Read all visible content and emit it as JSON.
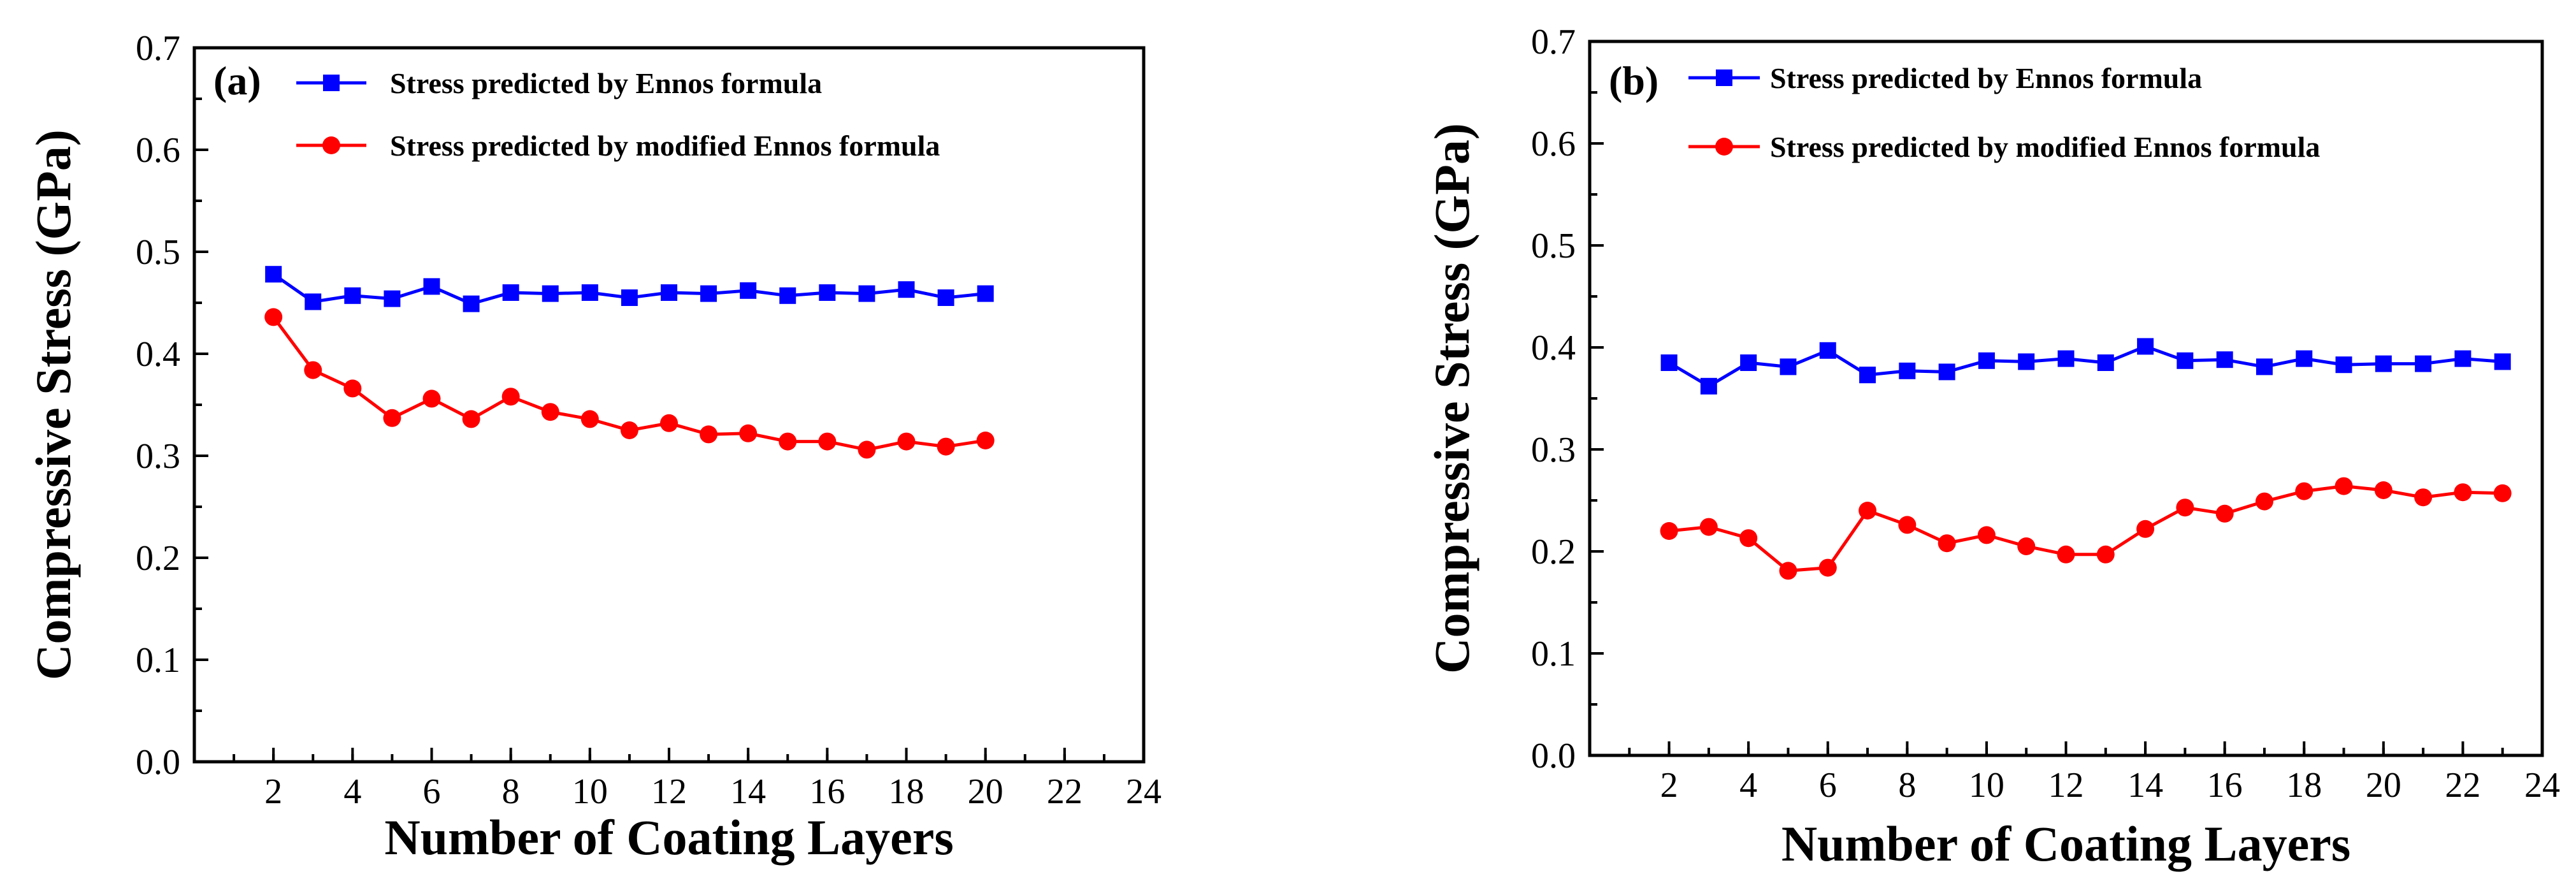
{
  "chart_data": [
    {
      "type": "line",
      "panel_label": "(a)",
      "xlabel": "Number of Coating Layers",
      "ylabel": "Compressive Stress (GPa)",
      "xlim": [
        0,
        24
      ],
      "ylim": [
        0.0,
        0.7
      ],
      "xticks": [
        2,
        4,
        6,
        8,
        10,
        12,
        14,
        16,
        18,
        20,
        22,
        24
      ],
      "yticks": [
        "0.0",
        "0.1",
        "0.2",
        "0.3",
        "0.4",
        "0.5",
        "0.6",
        "0.7"
      ],
      "legend_position": "top-left",
      "grid": false,
      "series": [
        {
          "name": "Stress predicted by Ennos formula",
          "color": "#0000ff",
          "marker": "square",
          "x": [
            2,
            3,
            4,
            5,
            6,
            7,
            8,
            9,
            10,
            11,
            12,
            13,
            14,
            15,
            16,
            17,
            18,
            19,
            20
          ],
          "values": [
            0.478,
            0.451,
            0.457,
            0.454,
            0.466,
            0.449,
            0.46,
            0.459,
            0.46,
            0.455,
            0.46,
            0.459,
            0.462,
            0.457,
            0.46,
            0.459,
            0.463,
            0.455,
            0.459
          ]
        },
        {
          "name": "Stress predicted by modified Ennos formula",
          "color": "#ff0000",
          "marker": "circle",
          "x": [
            2,
            3,
            4,
            5,
            6,
            7,
            8,
            9,
            10,
            11,
            12,
            13,
            14,
            15,
            16,
            17,
            18,
            19,
            20
          ],
          "values": [
            0.436,
            0.384,
            0.366,
            0.337,
            0.356,
            0.336,
            0.358,
            0.343,
            0.336,
            0.325,
            0.332,
            0.321,
            0.322,
            0.314,
            0.314,
            0.306,
            0.314,
            0.309,
            0.315
          ]
        }
      ]
    },
    {
      "type": "line",
      "panel_label": "(b)",
      "xlabel": "Number of Coating Layers",
      "ylabel": "Compressive Stress (GPa)",
      "xlim": [
        0,
        24
      ],
      "ylim": [
        0.0,
        0.7
      ],
      "xticks": [
        2,
        4,
        6,
        8,
        10,
        12,
        14,
        16,
        18,
        20,
        22,
        24
      ],
      "yticks": [
        "0.0",
        "0.1",
        "0.2",
        "0.3",
        "0.4",
        "0.5",
        "0.6",
        "0.7"
      ],
      "legend_position": "top-left",
      "grid": false,
      "series": [
        {
          "name": "Stress predicted by Ennos formula",
          "color": "#0000ff",
          "marker": "square",
          "x": [
            2,
            3,
            4,
            5,
            6,
            7,
            8,
            9,
            10,
            11,
            12,
            13,
            14,
            15,
            16,
            17,
            18,
            19,
            20,
            21,
            22,
            23
          ],
          "values": [
            0.385,
            0.362,
            0.385,
            0.381,
            0.397,
            0.373,
            0.377,
            0.376,
            0.387,
            0.386,
            0.389,
            0.385,
            0.401,
            0.387,
            0.388,
            0.381,
            0.389,
            0.383,
            0.384,
            0.384,
            0.389,
            0.386
          ]
        },
        {
          "name": "Stress predicted by modified Ennos formula",
          "color": "#ff0000",
          "marker": "circle",
          "x": [
            2,
            3,
            4,
            5,
            6,
            7,
            8,
            9,
            10,
            11,
            12,
            13,
            14,
            15,
            16,
            17,
            18,
            19,
            20,
            21,
            22,
            23
          ],
          "values": [
            0.22,
            0.224,
            0.213,
            0.181,
            0.184,
            0.24,
            0.226,
            0.208,
            0.216,
            0.205,
            0.197,
            0.197,
            0.222,
            0.243,
            0.237,
            0.249,
            0.259,
            0.264,
            0.26,
            0.253,
            0.258,
            0.257
          ]
        }
      ]
    }
  ]
}
